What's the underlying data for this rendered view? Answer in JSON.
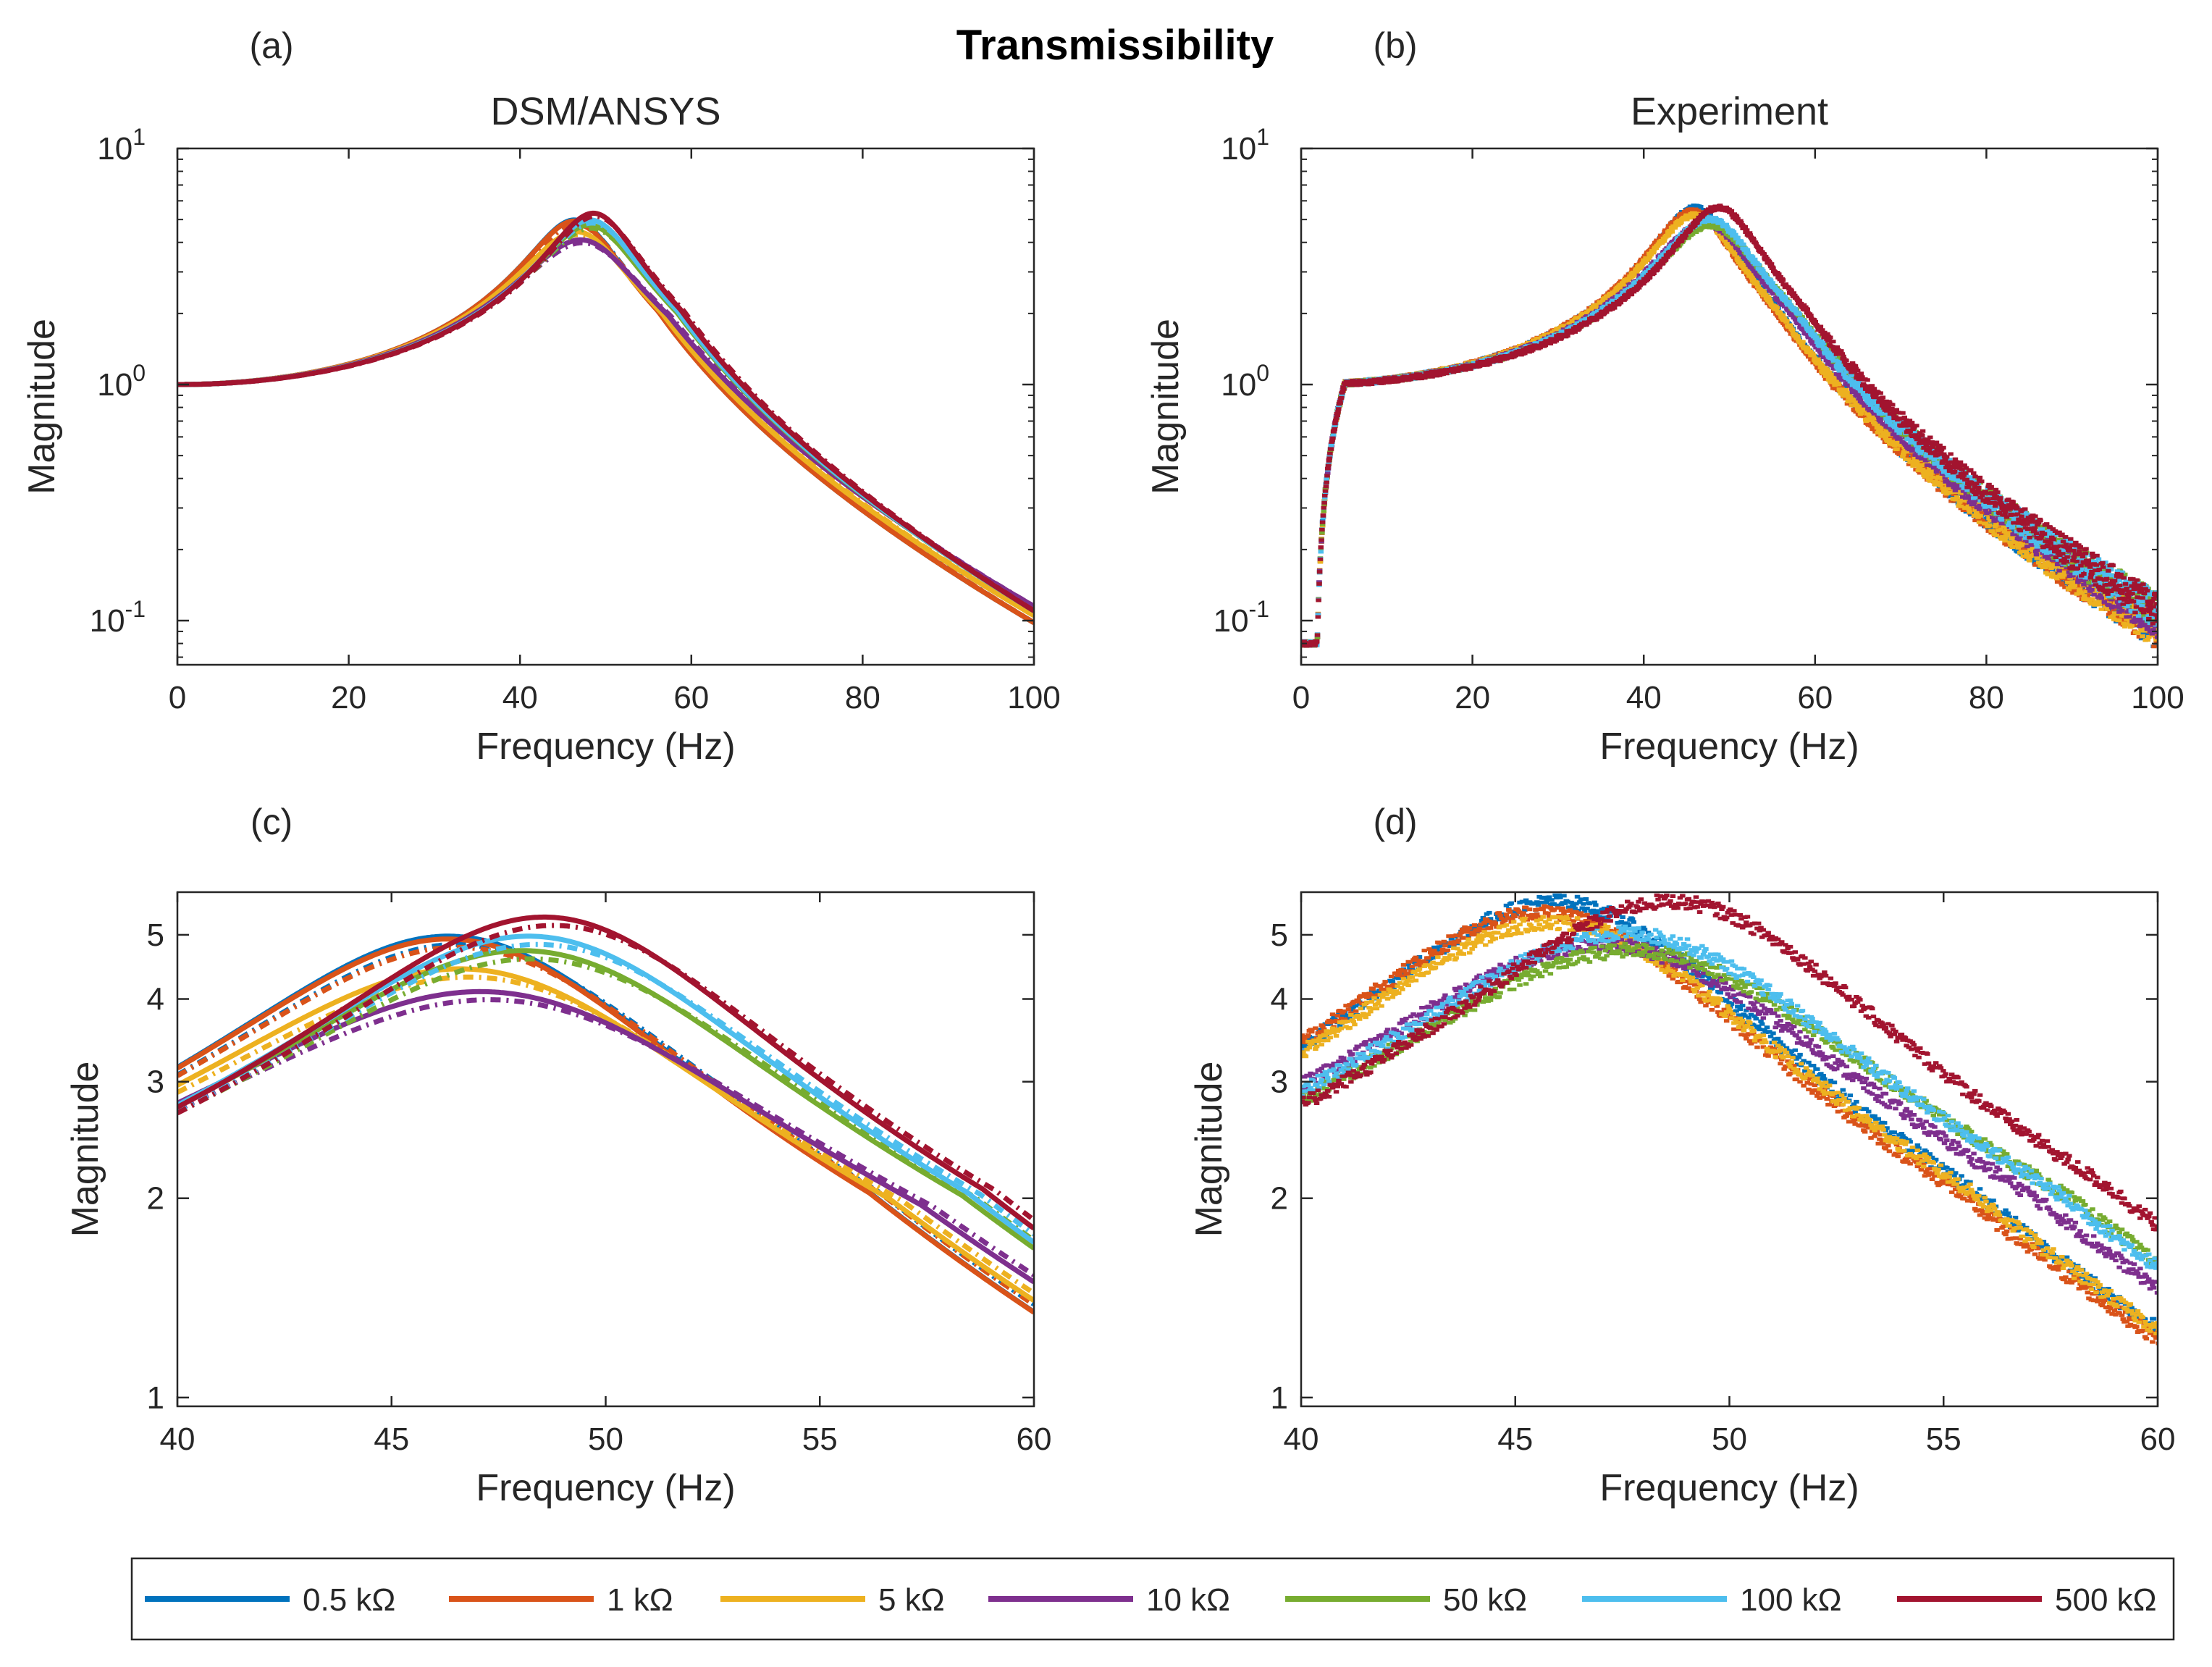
{
  "figure": {
    "title": "Transmissibility"
  },
  "legend": {
    "placement": "bottom",
    "entries": [
      {
        "label": "0.5 kΩ",
        "color": "#0072BD"
      },
      {
        "label": "1 kΩ",
        "color": "#D95319"
      },
      {
        "label": "5 kΩ",
        "color": "#EDB120"
      },
      {
        "label": "10 kΩ",
        "color": "#7E2F8E"
      },
      {
        "label": "50 kΩ",
        "color": "#77AC30"
      },
      {
        "label": "100 kΩ",
        "color": "#4DBEEE"
      },
      {
        "label": "500 kΩ",
        "color": "#A2142F"
      }
    ]
  },
  "panels": [
    {
      "id": "a",
      "label": "(a)",
      "title": "DSM/ANSYS"
    },
    {
      "id": "b",
      "label": "(b)",
      "title": "Experiment"
    },
    {
      "id": "c",
      "label": "(c)",
      "title": ""
    },
    {
      "id": "d",
      "label": "(d)",
      "title": ""
    }
  ],
  "chart_data": [
    {
      "panel": "a",
      "type": "line",
      "title": "DSM/ANSYS",
      "xlabel": "Frequency (Hz)",
      "ylabel": "Magnitude",
      "xlim": [
        0,
        100
      ],
      "ylim": [
        0.065,
        10
      ],
      "yscale": "log",
      "xticks": [
        0,
        20,
        40,
        60,
        80,
        100
      ],
      "yticks": [
        {
          "v": 0.1,
          "base": "10",
          "exp": "-1"
        },
        {
          "v": 1,
          "base": "10",
          "exp": "0"
        },
        {
          "v": 10,
          "base": "10",
          "exp": "1"
        }
      ],
      "series": [
        {
          "name": "0.5 kΩ",
          "fn": 46.8,
          "peak": 4.85,
          "high": 0.098
        },
        {
          "name": "1 kΩ",
          "fn": 46.8,
          "peak": 4.8,
          "high": 0.098
        },
        {
          "name": "5 kΩ",
          "fn": 47.2,
          "peak": 4.3,
          "high": 0.105
        },
        {
          "name": "10 kΩ",
          "fn": 47.8,
          "peak": 3.95,
          "high": 0.115
        },
        {
          "name": "50 kΩ",
          "fn": 48.6,
          "peak": 4.6,
          "high": 0.11
        },
        {
          "name": "100 kΩ",
          "fn": 48.7,
          "peak": 4.85,
          "high": 0.11
        },
        {
          "name": "500 kΩ",
          "fn": 49.0,
          "peak": 5.2,
          "high": 0.11
        }
      ]
    },
    {
      "panel": "b",
      "type": "scatter",
      "title": "Experiment",
      "xlabel": "Frequency (Hz)",
      "ylabel": "Magnitude",
      "xlim": [
        0,
        100
      ],
      "ylim": [
        0.065,
        10
      ],
      "yscale": "log",
      "xticks": [
        0,
        20,
        40,
        60,
        80,
        100
      ],
      "yticks": [
        {
          "v": 0.1,
          "base": "10",
          "exp": "-1"
        },
        {
          "v": 1,
          "base": "10",
          "exp": "0"
        },
        {
          "v": 10,
          "base": "10",
          "exp": "1"
        }
      ],
      "series": [
        {
          "name": "0.5 kΩ",
          "fn": 46.3,
          "peak": 5.5,
          "high": 0.09
        },
        {
          "name": "1 kΩ",
          "fn": 46.0,
          "peak": 5.3,
          "high": 0.09
        },
        {
          "name": "5 kΩ",
          "fn": 46.3,
          "peak": 5.1,
          "high": 0.09
        },
        {
          "name": "10 kΩ",
          "fn": 47.5,
          "peak": 4.7,
          "high": 0.1
        },
        {
          "name": "50 kΩ",
          "fn": 48.2,
          "peak": 4.6,
          "high": 0.11
        },
        {
          "name": "100 kΩ",
          "fn": 48.0,
          "peak": 4.9,
          "high": 0.11
        },
        {
          "name": "500 kΩ",
          "fn": 49.0,
          "peak": 5.5,
          "high": 0.11
        }
      ]
    },
    {
      "panel": "c",
      "type": "line",
      "title": "",
      "xlabel": "Frequency (Hz)",
      "ylabel": "Magnitude",
      "xlim": [
        40,
        60
      ],
      "ylim": [
        0.97,
        5.8
      ],
      "yscale": "log",
      "xticks": [
        40,
        45,
        50,
        55,
        60
      ],
      "yticks": [
        {
          "v": 1,
          "label": "1"
        },
        {
          "v": 2,
          "label": "2"
        },
        {
          "v": 3,
          "label": "3"
        },
        {
          "v": 4,
          "label": "4"
        },
        {
          "v": 5,
          "label": "5"
        }
      ],
      "series": [
        {
          "name": "0.5 kΩ",
          "fn": 46.8,
          "peak": 4.85,
          "high": 0.098
        },
        {
          "name": "1 kΩ",
          "fn": 46.8,
          "peak": 4.8,
          "high": 0.098
        },
        {
          "name": "5 kΩ",
          "fn": 47.2,
          "peak": 4.3,
          "high": 0.105
        },
        {
          "name": "10 kΩ",
          "fn": 47.8,
          "peak": 3.95,
          "high": 0.115
        },
        {
          "name": "50 kΩ",
          "fn": 48.6,
          "peak": 4.6,
          "high": 0.11
        },
        {
          "name": "100 kΩ",
          "fn": 48.7,
          "peak": 4.85,
          "high": 0.11
        },
        {
          "name": "500 kΩ",
          "fn": 49.0,
          "peak": 5.2,
          "high": 0.11
        }
      ]
    },
    {
      "panel": "d",
      "type": "scatter",
      "title": "",
      "xlabel": "Frequency (Hz)",
      "ylabel": "Magnitude",
      "xlim": [
        40,
        60
      ],
      "ylim": [
        0.97,
        5.8
      ],
      "yscale": "log",
      "xticks": [
        40,
        45,
        50,
        55,
        60
      ],
      "yticks": [
        {
          "v": 1,
          "label": "1"
        },
        {
          "v": 2,
          "label": "2"
        },
        {
          "v": 3,
          "label": "3"
        },
        {
          "v": 4,
          "label": "4"
        },
        {
          "v": 5,
          "label": "5"
        }
      ],
      "series": [
        {
          "name": "0.5 kΩ",
          "fn": 46.3,
          "peak": 5.5,
          "high": 0.09
        },
        {
          "name": "1 kΩ",
          "fn": 46.0,
          "peak": 5.3,
          "high": 0.09
        },
        {
          "name": "5 kΩ",
          "fn": 46.3,
          "peak": 5.1,
          "high": 0.09
        },
        {
          "name": "10 kΩ",
          "fn": 47.5,
          "peak": 4.7,
          "high": 0.1
        },
        {
          "name": "50 kΩ",
          "fn": 48.2,
          "peak": 4.6,
          "high": 0.11
        },
        {
          "name": "100 kΩ",
          "fn": 48.0,
          "peak": 4.9,
          "high": 0.11
        },
        {
          "name": "500 kΩ",
          "fn": 49.0,
          "peak": 5.5,
          "high": 0.11
        }
      ]
    }
  ]
}
